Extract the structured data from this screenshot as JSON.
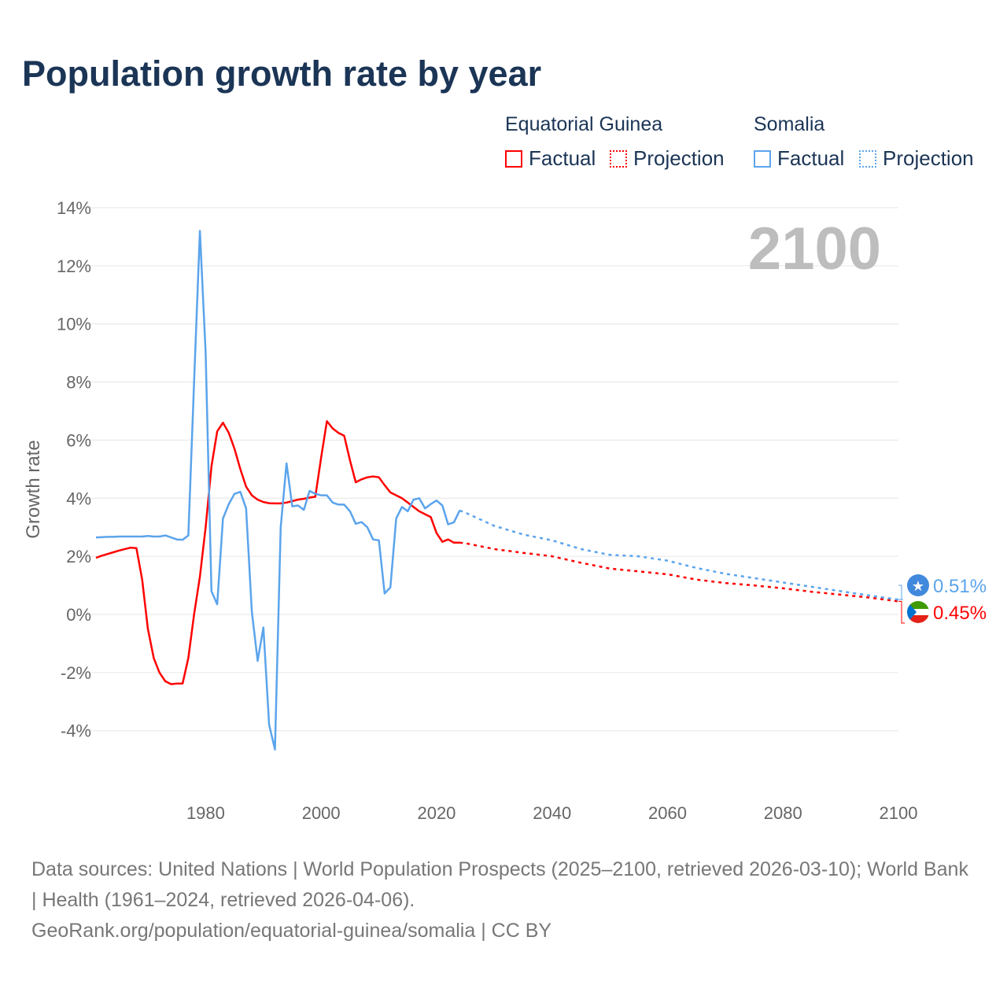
{
  "title": "Population growth rate by year",
  "legend": {
    "groups": [
      {
        "name": "Equatorial Guinea",
        "color": "#ff0000",
        "factual": "Factual",
        "projection": "Projection"
      },
      {
        "name": "Somalia",
        "color": "#5ba4ec",
        "factual": "Factual",
        "projection": "Projection"
      }
    ]
  },
  "chart_data": {
    "type": "line",
    "title": "Population growth rate by year",
    "xlabel": "",
    "ylabel": "Growth rate",
    "xlim": [
      1961,
      2100
    ],
    "ylim": [
      -5.5,
      14
    ],
    "yticks": [
      -4,
      -2,
      0,
      2,
      4,
      6,
      8,
      10,
      12,
      14
    ],
    "ytick_labels": [
      "-4%",
      "-2%",
      "0%",
      "2%",
      "4%",
      "6%",
      "8%",
      "10%",
      "12%",
      "14%"
    ],
    "xticks": [
      1980,
      2000,
      2020,
      2040,
      2060,
      2080,
      2100
    ],
    "xtick_labels": [
      "1980",
      "2000",
      "2020",
      "2040",
      "2060",
      "2080",
      "2100"
    ],
    "grid": true,
    "year_watermark": "2100",
    "series": [
      {
        "name": "Equatorial Guinea",
        "color": "#ff0000",
        "end_label": "0.45%",
        "factual": {
          "x": [
            1961,
            1962,
            1963,
            1964,
            1965,
            1966,
            1967,
            1968,
            1969,
            1970,
            1971,
            1972,
            1973,
            1974,
            1975,
            1976,
            1977,
            1978,
            1979,
            1980,
            1981,
            1982,
            1983,
            1984,
            1985,
            1986,
            1987,
            1988,
            1989,
            1990,
            1991,
            1992,
            1993,
            1994,
            1995,
            1996,
            1997,
            1998,
            1999,
            2000,
            2001,
            2002,
            2003,
            2004,
            2005,
            2006,
            2007,
            2008,
            2009,
            2010,
            2011,
            2012,
            2013,
            2014,
            2015,
            2016,
            2017,
            2018,
            2019,
            2020,
            2021,
            2022,
            2023,
            2024
          ],
          "y": [
            1.95,
            2.02,
            2.08,
            2.14,
            2.2,
            2.25,
            2.3,
            2.28,
            1.2,
            -0.5,
            -1.5,
            -2.0,
            -2.3,
            -2.4,
            -2.38,
            -2.38,
            -1.5,
            0.0,
            1.3,
            3.0,
            5.1,
            6.3,
            6.6,
            6.25,
            5.7,
            5.0,
            4.4,
            4.1,
            3.95,
            3.87,
            3.83,
            3.82,
            3.82,
            3.85,
            3.9,
            3.95,
            3.98,
            4.02,
            4.05,
            5.4,
            6.65,
            6.4,
            6.25,
            6.15,
            5.3,
            4.55,
            4.65,
            4.72,
            4.75,
            4.72,
            4.45,
            4.2,
            4.1,
            4.0,
            3.85,
            3.7,
            3.55,
            3.45,
            3.35,
            2.8,
            2.5,
            2.58,
            2.47,
            2.47
          ]
        },
        "projection": {
          "x": [
            2024,
            2025,
            2030,
            2035,
            2040,
            2045,
            2050,
            2055,
            2060,
            2065,
            2070,
            2075,
            2080,
            2085,
            2090,
            2095,
            2100
          ],
          "y": [
            2.47,
            2.45,
            2.25,
            2.12,
            2.0,
            1.78,
            1.58,
            1.48,
            1.38,
            1.2,
            1.08,
            1.0,
            0.9,
            0.78,
            0.68,
            0.58,
            0.45
          ]
        }
      },
      {
        "name": "Somalia",
        "color": "#5ba4ec",
        "end_label": "0.51%",
        "factual": {
          "x": [
            1961,
            1962,
            1963,
            1964,
            1965,
            1966,
            1967,
            1968,
            1969,
            1970,
            1971,
            1972,
            1973,
            1974,
            1975,
            1976,
            1977,
            1978,
            1979,
            1980,
            1981,
            1982,
            1983,
            1984,
            1985,
            1986,
            1987,
            1988,
            1989,
            1990,
            1991,
            1992,
            1993,
            1994,
            1995,
            1996,
            1997,
            1998,
            1999,
            2000,
            2001,
            2002,
            2003,
            2004,
            2005,
            2006,
            2007,
            2008,
            2009,
            2010,
            2011,
            2012,
            2013,
            2014,
            2015,
            2016,
            2017,
            2018,
            2019,
            2020,
            2021,
            2022,
            2023,
            2024
          ],
          "y": [
            2.65,
            2.66,
            2.67,
            2.67,
            2.68,
            2.68,
            2.68,
            2.68,
            2.68,
            2.7,
            2.68,
            2.68,
            2.72,
            2.65,
            2.58,
            2.57,
            2.72,
            8.0,
            13.2,
            9.0,
            0.8,
            0.35,
            3.3,
            3.8,
            4.15,
            4.22,
            3.65,
            0.1,
            -1.6,
            -0.45,
            -3.8,
            -4.65,
            3.0,
            5.2,
            3.72,
            3.75,
            3.6,
            4.25,
            4.15,
            4.1,
            4.1,
            3.85,
            3.78,
            3.78,
            3.55,
            3.12,
            3.18,
            3.0,
            2.58,
            2.55,
            0.72,
            0.93,
            3.3,
            3.7,
            3.55,
            3.95,
            4.0,
            3.65,
            3.8,
            3.92,
            3.75,
            3.1,
            3.17,
            3.58
          ]
        },
        "projection": {
          "x": [
            2024,
            2025,
            2030,
            2035,
            2040,
            2045,
            2050,
            2055,
            2060,
            2065,
            2070,
            2075,
            2080,
            2085,
            2090,
            2095,
            2100
          ],
          "y": [
            3.58,
            3.5,
            3.05,
            2.75,
            2.55,
            2.25,
            2.05,
            2.0,
            1.85,
            1.6,
            1.4,
            1.25,
            1.1,
            0.95,
            0.8,
            0.65,
            0.51
          ]
        }
      }
    ]
  },
  "footer": {
    "sources": "Data sources: United Nations | World Population Prospects (2025–2100, retrieved 2026-03-10); World Bank | Health (1961–2024, retrieved 2026-04-06).",
    "credit": "GeoRank.org/population/equatorial-guinea/somalia | CC BY"
  }
}
